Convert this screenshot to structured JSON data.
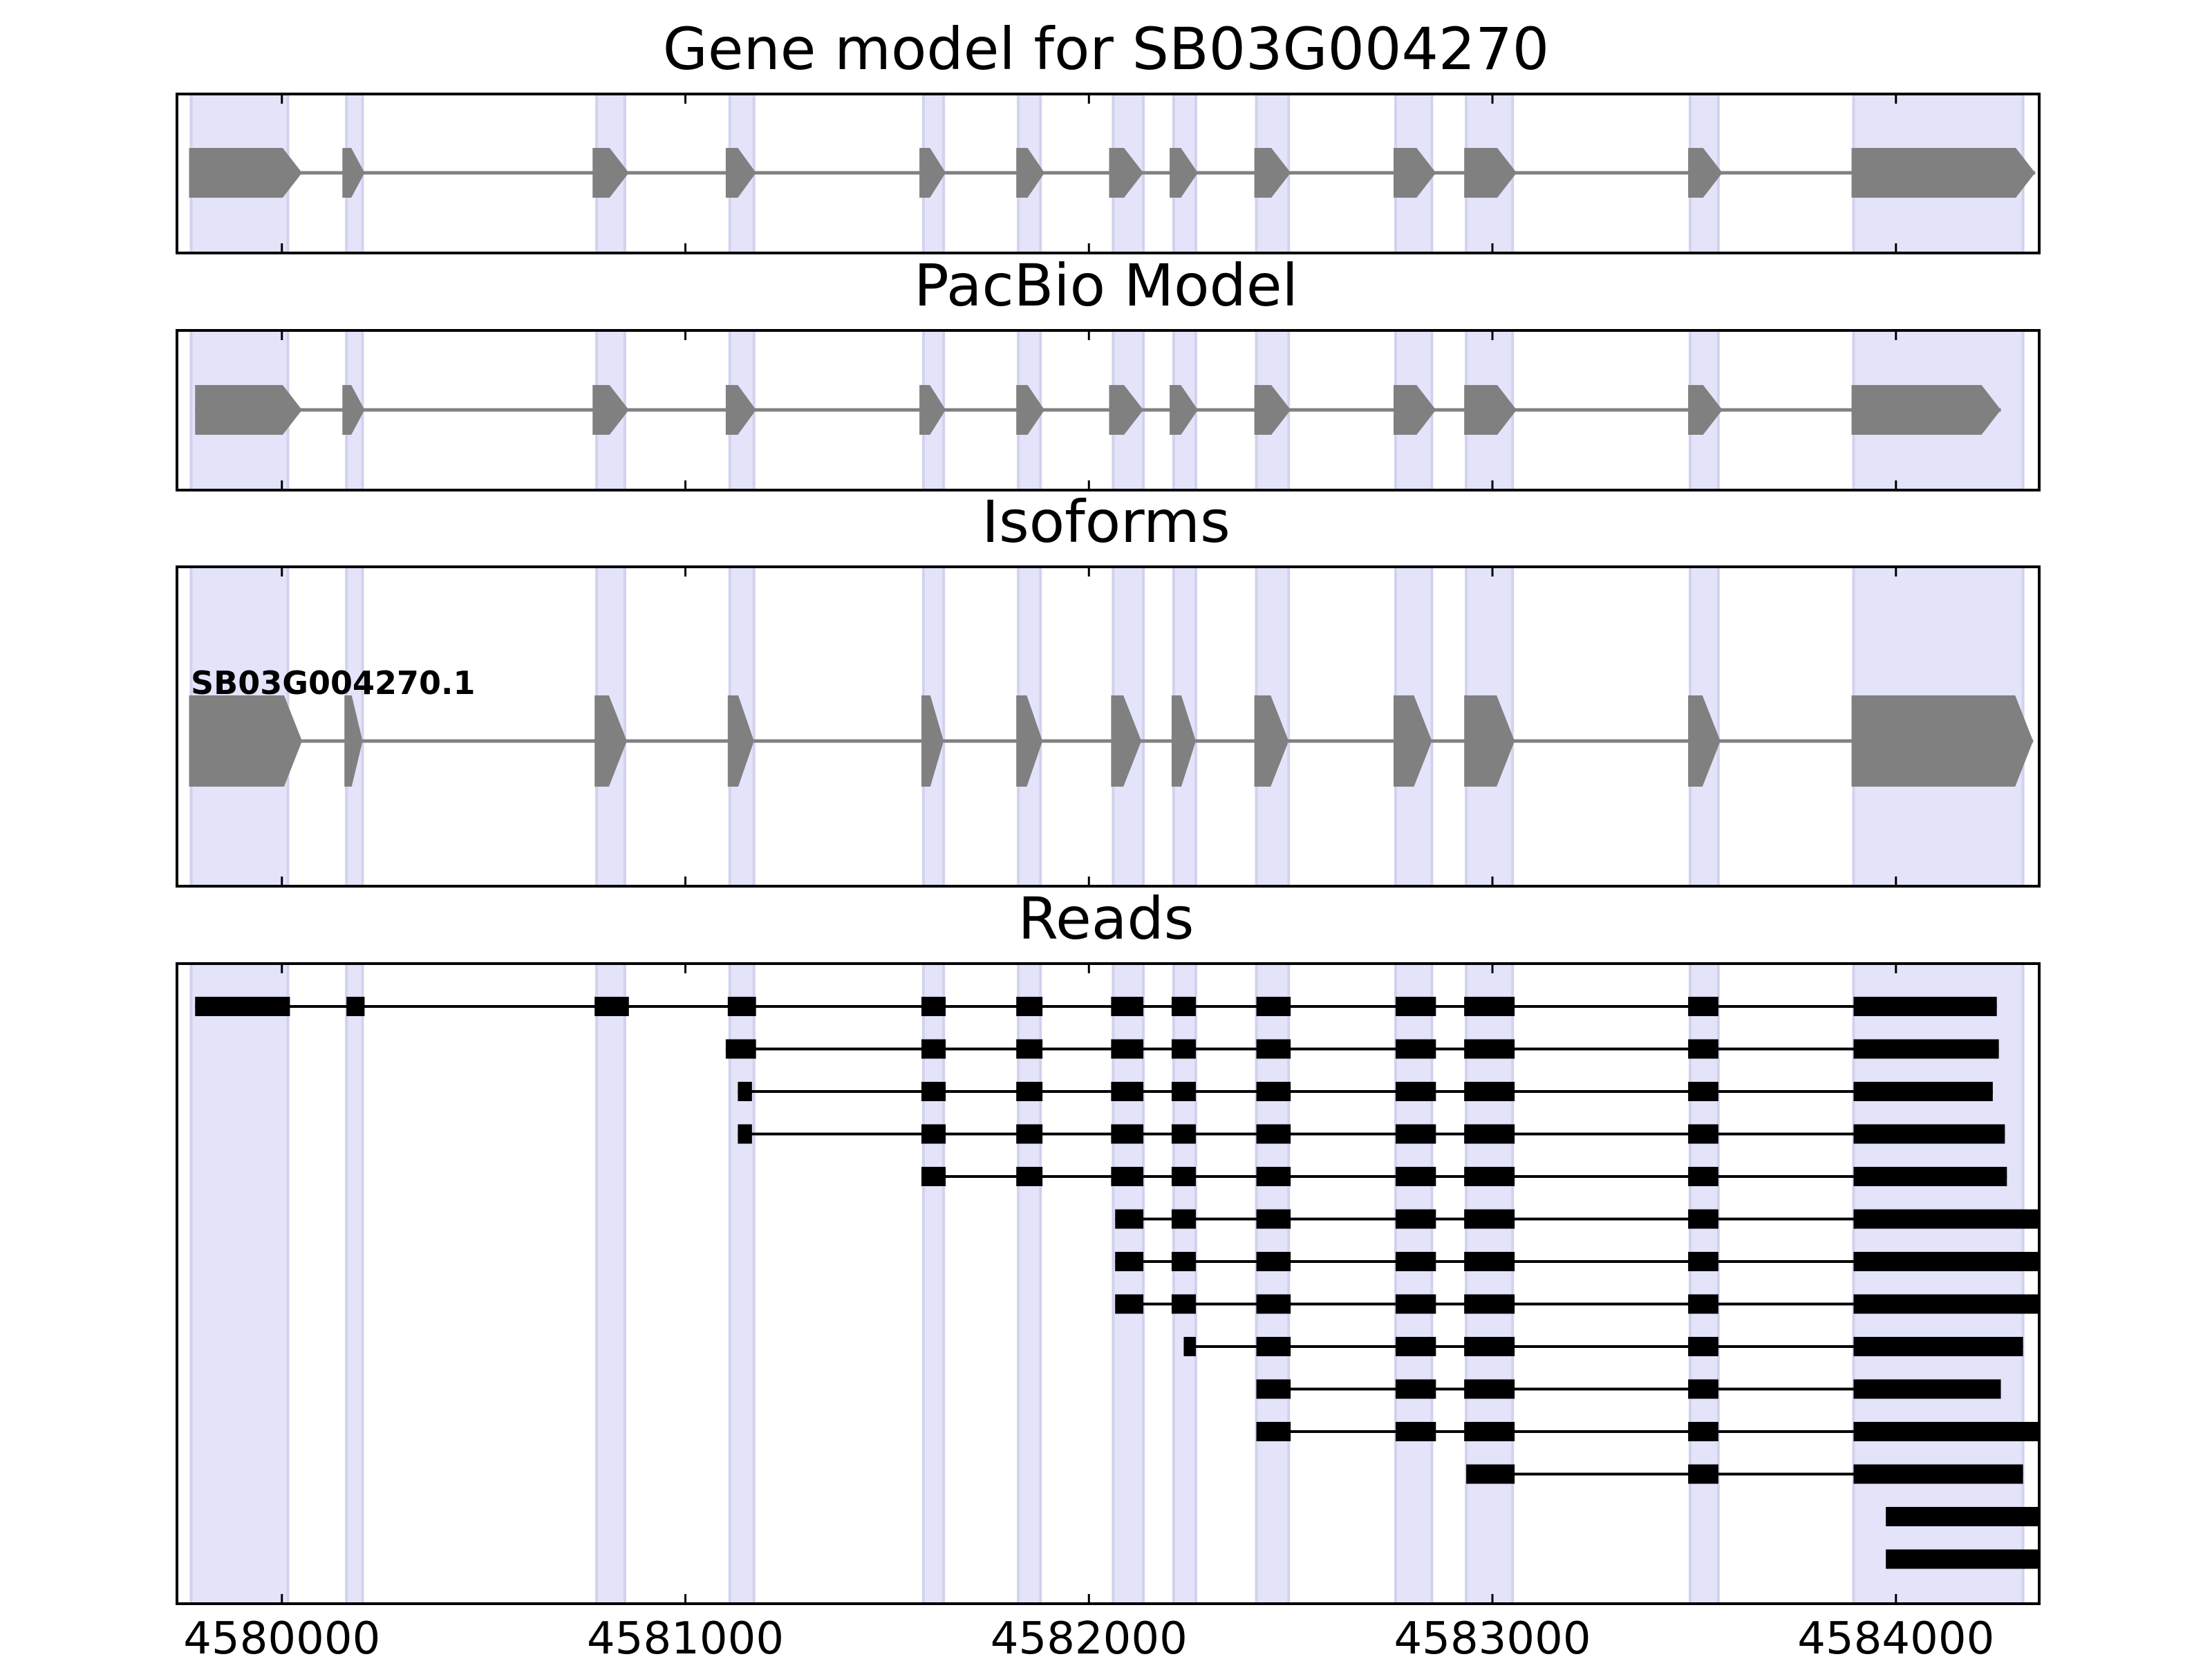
{
  "chart_data": {
    "type": "gene-structure",
    "x_axis": {
      "xlim": [
        4579740,
        4584355
      ],
      "ticks": [
        4580000,
        4581000,
        4582000,
        4583000,
        4584000
      ],
      "tick_labels": [
        "4580000",
        "4581000",
        "4582000",
        "4583000",
        "4584000"
      ]
    },
    "highlight_regions": [
      [
        4579775,
        4580015
      ],
      [
        4580160,
        4580200
      ],
      [
        4580780,
        4580850
      ],
      [
        4581110,
        4581170
      ],
      [
        4581590,
        4581640
      ],
      [
        4581825,
        4581880
      ],
      [
        4582060,
        4582135
      ],
      [
        4582210,
        4582265
      ],
      [
        4582415,
        4582495
      ],
      [
        4582760,
        4582850
      ],
      [
        4582935,
        4583050
      ],
      [
        4583490,
        4583560
      ],
      [
        4583895,
        4584315
      ]
    ],
    "panels": [
      {
        "title": "Gene model for SB03G004270",
        "strand": "+",
        "exons": [
          [
            4579770,
            4580050
          ],
          [
            4580150,
            4580205
          ],
          [
            4580770,
            4580860
          ],
          [
            4581100,
            4581175
          ],
          [
            4581580,
            4581645
          ],
          [
            4581820,
            4581890
          ],
          [
            4582050,
            4582135
          ],
          [
            4582200,
            4582270
          ],
          [
            4582410,
            4582500
          ],
          [
            4582755,
            4582860
          ],
          [
            4582930,
            4583060
          ],
          [
            4583485,
            4583570
          ],
          [
            4583890,
            4584345
          ]
        ]
      },
      {
        "title": "PacBio Model",
        "strand": "+",
        "exons": [
          [
            4579785,
            4580050
          ],
          [
            4580150,
            4580205
          ],
          [
            4580770,
            4580860
          ],
          [
            4581100,
            4581175
          ],
          [
            4581580,
            4581645
          ],
          [
            4581820,
            4581890
          ],
          [
            4582050,
            4582135
          ],
          [
            4582200,
            4582270
          ],
          [
            4582410,
            4582500
          ],
          [
            4582755,
            4582860
          ],
          [
            4582930,
            4583060
          ],
          [
            4583485,
            4583570
          ],
          [
            4583890,
            4584260
          ]
        ]
      },
      {
        "title": "Isoforms",
        "strand": "+",
        "isoform_label": "SB03G004270.1",
        "exons": [
          [
            4579770,
            4580050
          ],
          [
            4580155,
            4580200
          ],
          [
            4580775,
            4580855
          ],
          [
            4581105,
            4581170
          ],
          [
            4581585,
            4581640
          ],
          [
            4581820,
            4581885
          ],
          [
            4582055,
            4582130
          ],
          [
            4582205,
            4582265
          ],
          [
            4582410,
            4582495
          ],
          [
            4582755,
            4582850
          ],
          [
            4582930,
            4583055
          ],
          [
            4583485,
            4583565
          ],
          [
            4583890,
            4584340
          ]
        ]
      }
    ],
    "reads_panel": {
      "title": "Reads",
      "reads": [
        [
          [
            4579785,
            4580020
          ],
          [
            4580160,
            4580205
          ],
          [
            4580775,
            4580860
          ],
          [
            4581105,
            4581175
          ],
          [
            4581585,
            4581645
          ],
          [
            4581820,
            4581885
          ],
          [
            4582055,
            4582135
          ],
          [
            4582205,
            4582265
          ],
          [
            4582415,
            4582500
          ],
          [
            4582760,
            4582860
          ],
          [
            4582930,
            4583055
          ],
          [
            4583485,
            4583560
          ],
          [
            4583895,
            4584250
          ]
        ],
        [
          [
            4581100,
            4581175
          ],
          [
            4581585,
            4581645
          ],
          [
            4581820,
            4581885
          ],
          [
            4582055,
            4582135
          ],
          [
            4582205,
            4582265
          ],
          [
            4582415,
            4582500
          ],
          [
            4582760,
            4582860
          ],
          [
            4582930,
            4583055
          ],
          [
            4583485,
            4583560
          ],
          [
            4583895,
            4584255
          ]
        ],
        [
          [
            4581130,
            4581165
          ],
          [
            4581585,
            4581645
          ],
          [
            4581820,
            4581885
          ],
          [
            4582055,
            4582135
          ],
          [
            4582205,
            4582265
          ],
          [
            4582415,
            4582500
          ],
          [
            4582760,
            4582860
          ],
          [
            4582930,
            4583055
          ],
          [
            4583485,
            4583560
          ],
          [
            4583895,
            4584240
          ]
        ],
        [
          [
            4581130,
            4581165
          ],
          [
            4581585,
            4581645
          ],
          [
            4581820,
            4581885
          ],
          [
            4582055,
            4582135
          ],
          [
            4582205,
            4582265
          ],
          [
            4582415,
            4582500
          ],
          [
            4582760,
            4582860
          ],
          [
            4582930,
            4583055
          ],
          [
            4583485,
            4583560
          ],
          [
            4583895,
            4584270
          ]
        ],
        [
          [
            4581585,
            4581645
          ],
          [
            4581820,
            4581885
          ],
          [
            4582055,
            4582135
          ],
          [
            4582205,
            4582265
          ],
          [
            4582415,
            4582500
          ],
          [
            4582760,
            4582860
          ],
          [
            4582930,
            4583055
          ],
          [
            4583485,
            4583560
          ],
          [
            4583895,
            4584275
          ]
        ],
        [
          [
            4582065,
            4582135
          ],
          [
            4582205,
            4582265
          ],
          [
            4582415,
            4582500
          ],
          [
            4582760,
            4582860
          ],
          [
            4582930,
            4583055
          ],
          [
            4583485,
            4583560
          ],
          [
            4583895,
            4584355
          ]
        ],
        [
          [
            4582065,
            4582135
          ],
          [
            4582205,
            4582265
          ],
          [
            4582415,
            4582500
          ],
          [
            4582760,
            4582860
          ],
          [
            4582930,
            4583055
          ],
          [
            4583485,
            4583560
          ],
          [
            4583895,
            4584355
          ]
        ],
        [
          [
            4582065,
            4582135
          ],
          [
            4582205,
            4582265
          ],
          [
            4582415,
            4582500
          ],
          [
            4582760,
            4582860
          ],
          [
            4582930,
            4583055
          ],
          [
            4583485,
            4583560
          ],
          [
            4583895,
            4584355
          ]
        ],
        [
          [
            4582235,
            4582265
          ],
          [
            4582415,
            4582500
          ],
          [
            4582760,
            4582860
          ],
          [
            4582930,
            4583055
          ],
          [
            4583485,
            4583560
          ],
          [
            4583895,
            4584315
          ]
        ],
        [
          [
            4582415,
            4582500
          ],
          [
            4582760,
            4582860
          ],
          [
            4582930,
            4583055
          ],
          [
            4583485,
            4583560
          ],
          [
            4583895,
            4584260
          ]
        ],
        [
          [
            4582415,
            4582500
          ],
          [
            4582760,
            4582860
          ],
          [
            4582930,
            4583055
          ],
          [
            4583485,
            4583560
          ],
          [
            4583895,
            4584355
          ]
        ],
        [
          [
            4582935,
            4583055
          ],
          [
            4583485,
            4583560
          ],
          [
            4583895,
            4584315
          ]
        ],
        [
          [
            4583975,
            4584355
          ]
        ],
        [
          [
            4583975,
            4584355
          ]
        ]
      ]
    },
    "colors": {
      "highlight": "#e3e3fa",
      "highlight_edge": "#d2d2ef",
      "exon": "#808080",
      "intron": "#808080",
      "read": "#000000",
      "frame": "#000000"
    }
  }
}
